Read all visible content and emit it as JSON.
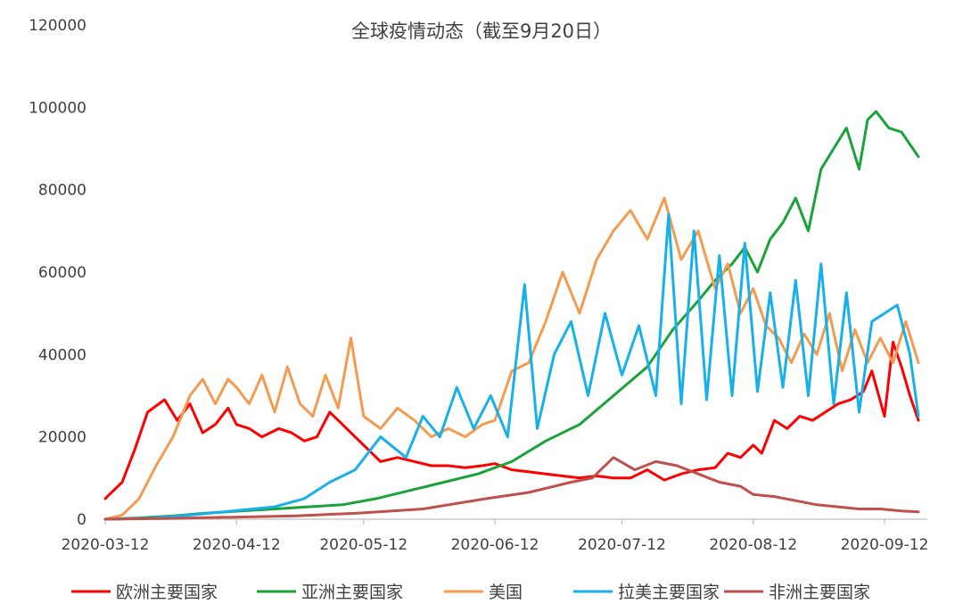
{
  "chart_data": {
    "type": "line",
    "title": "全球疫情动态（截至9月20日）",
    "xlabel": "",
    "ylabel": "",
    "ylim": [
      0,
      120000
    ],
    "yticks": [
      "0",
      "20000",
      "40000",
      "60000",
      "80000",
      "100000",
      "120000"
    ],
    "xtick_labels": [
      "2020-03-12",
      "2020-04-12",
      "2020-05-12",
      "2020-06-12",
      "2020-07-12",
      "2020-08-12",
      "2020-09-12"
    ],
    "xtick_dates": [
      "2020-03-12",
      "2020-04-12",
      "2020-05-12",
      "2020-06-12",
      "2020-07-12",
      "2020-08-12",
      "2020-09-12"
    ],
    "x_start": "2020-03-12",
    "x_end": "2020-09-20",
    "grid": false,
    "legend_position": "bottom",
    "series": [
      {
        "name": "欧洲主要国家",
        "color": "#ff0000",
        "x": [
          "2020-03-12",
          "2020-03-16",
          "2020-03-19",
          "2020-03-22",
          "2020-03-26",
          "2020-03-29",
          "2020-04-01",
          "2020-04-04",
          "2020-04-07",
          "2020-04-10",
          "2020-04-12",
          "2020-04-15",
          "2020-04-18",
          "2020-04-22",
          "2020-04-25",
          "2020-04-28",
          "2020-05-01",
          "2020-05-04",
          "2020-05-08",
          "2020-05-12",
          "2020-05-16",
          "2020-05-20",
          "2020-05-24",
          "2020-05-28",
          "2020-06-01",
          "2020-06-05",
          "2020-06-09",
          "2020-06-12",
          "2020-06-16",
          "2020-06-20",
          "2020-06-24",
          "2020-06-28",
          "2020-07-02",
          "2020-07-06",
          "2020-07-10",
          "2020-07-14",
          "2020-07-18",
          "2020-07-22",
          "2020-07-26",
          "2020-07-30",
          "2020-08-03",
          "2020-08-06",
          "2020-08-09",
          "2020-08-12",
          "2020-08-14",
          "2020-08-17",
          "2020-08-20",
          "2020-08-23",
          "2020-08-26",
          "2020-08-29",
          "2020-09-01",
          "2020-09-04",
          "2020-09-07",
          "2020-09-09",
          "2020-09-12",
          "2020-09-14",
          "2020-09-16",
          "2020-09-18",
          "2020-09-20"
        ],
        "values": [
          5000,
          9000,
          17000,
          26000,
          29000,
          24000,
          28000,
          21000,
          23000,
          27000,
          23000,
          22000,
          20000,
          22000,
          21000,
          19000,
          20000,
          26000,
          22000,
          18000,
          14000,
          15000,
          14000,
          13000,
          13000,
          12500,
          13000,
          13500,
          12000,
          11500,
          11000,
          10500,
          10000,
          10500,
          10000,
          10000,
          12000,
          9500,
          11000,
          12000,
          12500,
          16000,
          15000,
          18000,
          16000,
          24000,
          22000,
          25000,
          24000,
          26000,
          28000,
          29000,
          31000,
          36000,
          25000,
          43000,
          37000,
          30000,
          24000
        ]
      },
      {
        "name": "亚洲主要国家",
        "color": "#1aa33a",
        "x": [
          "2020-03-12",
          "2020-03-20",
          "2020-03-28",
          "2020-04-05",
          "2020-04-13",
          "2020-04-21",
          "2020-04-29",
          "2020-05-07",
          "2020-05-15",
          "2020-05-23",
          "2020-05-31",
          "2020-06-08",
          "2020-06-16",
          "2020-06-24",
          "2020-07-02",
          "2020-07-10",
          "2020-07-18",
          "2020-07-24",
          "2020-07-30",
          "2020-08-03",
          "2020-08-07",
          "2020-08-10",
          "2020-08-13",
          "2020-08-16",
          "2020-08-19",
          "2020-08-22",
          "2020-08-25",
          "2020-08-28",
          "2020-08-31",
          "2020-09-03",
          "2020-09-06",
          "2020-09-08",
          "2020-09-10",
          "2020-09-13",
          "2020-09-16",
          "2020-09-20"
        ],
        "values": [
          0,
          300,
          800,
          1500,
          2000,
          2500,
          3000,
          3500,
          5000,
          7000,
          9000,
          11000,
          14000,
          19000,
          23000,
          30000,
          37000,
          46000,
          53000,
          58000,
          62000,
          66000,
          60000,
          68000,
          72000,
          78000,
          70000,
          85000,
          90000,
          95000,
          85000,
          97000,
          99000,
          95000,
          94000,
          88000
        ]
      },
      {
        "name": "美国",
        "color": "#f39b50",
        "x": [
          "2020-03-12",
          "2020-03-16",
          "2020-03-20",
          "2020-03-24",
          "2020-03-28",
          "2020-04-01",
          "2020-04-04",
          "2020-04-07",
          "2020-04-10",
          "2020-04-12",
          "2020-04-15",
          "2020-04-18",
          "2020-04-21",
          "2020-04-24",
          "2020-04-27",
          "2020-04-30",
          "2020-05-03",
          "2020-05-06",
          "2020-05-09",
          "2020-05-12",
          "2020-05-16",
          "2020-05-20",
          "2020-05-24",
          "2020-05-28",
          "2020-06-01",
          "2020-06-05",
          "2020-06-09",
          "2020-06-12",
          "2020-06-16",
          "2020-06-20",
          "2020-06-24",
          "2020-06-28",
          "2020-07-02",
          "2020-07-06",
          "2020-07-10",
          "2020-07-14",
          "2020-07-18",
          "2020-07-22",
          "2020-07-26",
          "2020-07-30",
          "2020-08-03",
          "2020-08-06",
          "2020-08-09",
          "2020-08-12",
          "2020-08-15",
          "2020-08-18",
          "2020-08-21",
          "2020-08-24",
          "2020-08-27",
          "2020-08-30",
          "2020-09-02",
          "2020-09-05",
          "2020-09-08",
          "2020-09-11",
          "2020-09-14",
          "2020-09-17",
          "2020-09-20"
        ],
        "values": [
          0,
          1000,
          5000,
          13000,
          20000,
          30000,
          34000,
          28000,
          34000,
          32000,
          28000,
          35000,
          26000,
          37000,
          28000,
          25000,
          35000,
          27000,
          44000,
          25000,
          22000,
          27000,
          24000,
          20000,
          22000,
          20000,
          23000,
          24000,
          36000,
          38000,
          48000,
          60000,
          50000,
          63000,
          70000,
          75000,
          68000,
          78000,
          63000,
          70000,
          56000,
          62000,
          50000,
          56000,
          47000,
          44000,
          38000,
          45000,
          40000,
          50000,
          36000,
          46000,
          38000,
          44000,
          38000,
          48000,
          38000
        ]
      },
      {
        "name": "拉美主要国家",
        "color": "#17b0eb",
        "x": [
          "2020-03-12",
          "2020-03-22",
          "2020-04-01",
          "2020-04-11",
          "2020-04-21",
          "2020-04-28",
          "2020-05-04",
          "2020-05-10",
          "2020-05-16",
          "2020-05-22",
          "2020-05-26",
          "2020-05-30",
          "2020-06-03",
          "2020-06-07",
          "2020-06-11",
          "2020-06-15",
          "2020-06-19",
          "2020-06-22",
          "2020-06-26",
          "2020-06-30",
          "2020-07-04",
          "2020-07-08",
          "2020-07-12",
          "2020-07-16",
          "2020-07-20",
          "2020-07-23",
          "2020-07-26",
          "2020-07-29",
          "2020-08-01",
          "2020-08-04",
          "2020-08-07",
          "2020-08-10",
          "2020-08-13",
          "2020-08-16",
          "2020-08-19",
          "2020-08-22",
          "2020-08-25",
          "2020-08-28",
          "2020-08-31",
          "2020-09-03",
          "2020-09-06",
          "2020-09-09",
          "2020-09-12",
          "2020-09-15",
          "2020-09-18",
          "2020-09-20"
        ],
        "values": [
          0,
          200,
          1000,
          2000,
          3000,
          5000,
          9000,
          12000,
          20000,
          15000,
          25000,
          20000,
          32000,
          22000,
          30000,
          20000,
          57000,
          22000,
          40000,
          48000,
          30000,
          50000,
          35000,
          47000,
          30000,
          74000,
          28000,
          70000,
          29000,
          64000,
          30000,
          67000,
          31000,
          55000,
          32000,
          58000,
          30000,
          62000,
          28000,
          55000,
          26000,
          48000,
          50000,
          52000,
          40000,
          25000
        ]
      },
      {
        "name": "非洲主要国家",
        "color": "#c0504d",
        "x": [
          "2020-03-12",
          "2020-03-27",
          "2020-04-11",
          "2020-04-26",
          "2020-05-11",
          "2020-05-26",
          "2020-06-10",
          "2020-06-20",
          "2020-06-30",
          "2020-07-05",
          "2020-07-10",
          "2020-07-15",
          "2020-07-20",
          "2020-07-25",
          "2020-07-30",
          "2020-08-04",
          "2020-08-09",
          "2020-08-12",
          "2020-08-17",
          "2020-08-22",
          "2020-08-27",
          "2020-09-01",
          "2020-09-06",
          "2020-09-11",
          "2020-09-16",
          "2020-09-20"
        ],
        "values": [
          0,
          200,
          500,
          800,
          1500,
          2500,
          5000,
          6500,
          9000,
          10000,
          15000,
          12000,
          14000,
          13000,
          11000,
          9000,
          8000,
          6000,
          5500,
          4500,
          3500,
          3000,
          2500,
          2500,
          2000,
          1800
        ]
      }
    ]
  }
}
